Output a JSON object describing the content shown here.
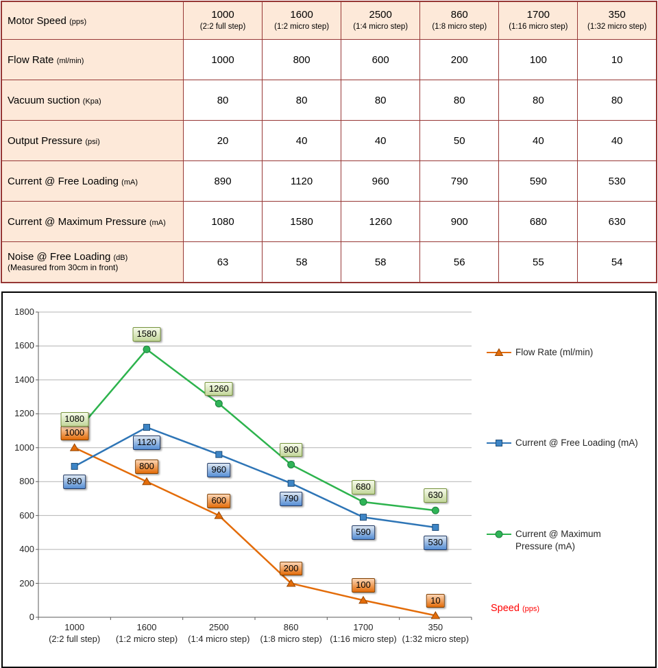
{
  "table": {
    "header": {
      "label": "Motor Speed",
      "unit": "(pps)",
      "columns": [
        {
          "value": "1000",
          "sub": "(2:2 full step)"
        },
        {
          "value": "1600",
          "sub": "(1:2 micro step)"
        },
        {
          "value": "2500",
          "sub": "(1:4 micro step)"
        },
        {
          "value": "860",
          "sub": "(1:8 micro step)"
        },
        {
          "value": "1700",
          "sub": "(1:16 micro step)"
        },
        {
          "value": "350",
          "sub": "(1:32 micro step)"
        }
      ]
    },
    "rows": [
      {
        "label": "Flow Rate",
        "unit": "(ml/min)",
        "values": [
          "1000",
          "800",
          "600",
          "200",
          "100",
          "10"
        ]
      },
      {
        "label": "Vacuum suction",
        "unit": "(Kpa)",
        "values": [
          "80",
          "80",
          "80",
          "80",
          "80",
          "80"
        ]
      },
      {
        "label": "Output Pressure",
        "unit": "(psi)",
        "values": [
          "20",
          "40",
          "40",
          "50",
          "40",
          "40"
        ]
      },
      {
        "label": "Current @ Free Loading",
        "unit": "(mA)",
        "values": [
          "890",
          "1120",
          "960",
          "790",
          "590",
          "530"
        ]
      },
      {
        "label": "Current @ Maximum Pressure",
        "unit": "(mA)",
        "values": [
          "1080",
          "1580",
          "1260",
          "900",
          "680",
          "630"
        ]
      },
      {
        "label": "Noise @ Free Loading",
        "unit": "(dB)",
        "note": "(Measured from 30cm in front)",
        "values": [
          "63",
          "58",
          "58",
          "56",
          "55",
          "54"
        ]
      }
    ]
  },
  "chart_data": {
    "type": "line",
    "categories": [
      {
        "value": "1000",
        "sub": "(2:2 full step)"
      },
      {
        "value": "1600",
        "sub": "(1:2 micro step)"
      },
      {
        "value": "2500",
        "sub": "(1:4 micro step)"
      },
      {
        "value": "860",
        "sub": "(1:8 micro step)"
      },
      {
        "value": "1700",
        "sub": "(1:16 micro step)"
      },
      {
        "value": "350",
        "sub": "(1:32 micro step)"
      }
    ],
    "series": [
      {
        "name": "Flow Rate (ml/min)",
        "marker": "triangle",
        "color": "#e36c09",
        "marker_fill": "#e36c09",
        "marker_stroke": "#974806",
        "label_bg_top": "#fcd5b4",
        "label_bg_bottom": "#e36c09",
        "label_border": "#7f3f00",
        "label_offset": "above",
        "values": [
          1000,
          800,
          600,
          200,
          100,
          10
        ]
      },
      {
        "name": "Current @ Free Loading (mA)",
        "marker": "square",
        "color": "#2e75b6",
        "marker_fill": "#3d85c6",
        "marker_stroke": "#1f4e79",
        "label_bg_top": "#dce6f1",
        "label_bg_bottom": "#558ed5",
        "label_border": "#1f3864",
        "label_offset": "below",
        "values": [
          890,
          1120,
          960,
          790,
          590,
          530
        ]
      },
      {
        "name": "Current @ Maximum Pressure (mA)",
        "marker": "circle",
        "color": "#2db34d",
        "marker_fill": "#2fb457",
        "marker_stroke": "#1e7e3e",
        "label_bg_top": "#f6fbea",
        "label_bg_bottom": "#c3d69b",
        "label_border": "#76933c",
        "label_offset": "above",
        "values": [
          1080,
          1580,
          1260,
          900,
          680,
          630
        ]
      }
    ],
    "ylim": [
      0,
      1800
    ],
    "ytick": 200,
    "grid": true,
    "legend_position": "right",
    "xlabel": {
      "main": "Speed",
      "unit": "(pps)",
      "color": "#ff0000"
    }
  },
  "colors": {
    "table_header_bg": "#fde9d9",
    "table_border": "#963634",
    "gridline": "#b3b3b3",
    "axis": "#595959"
  }
}
